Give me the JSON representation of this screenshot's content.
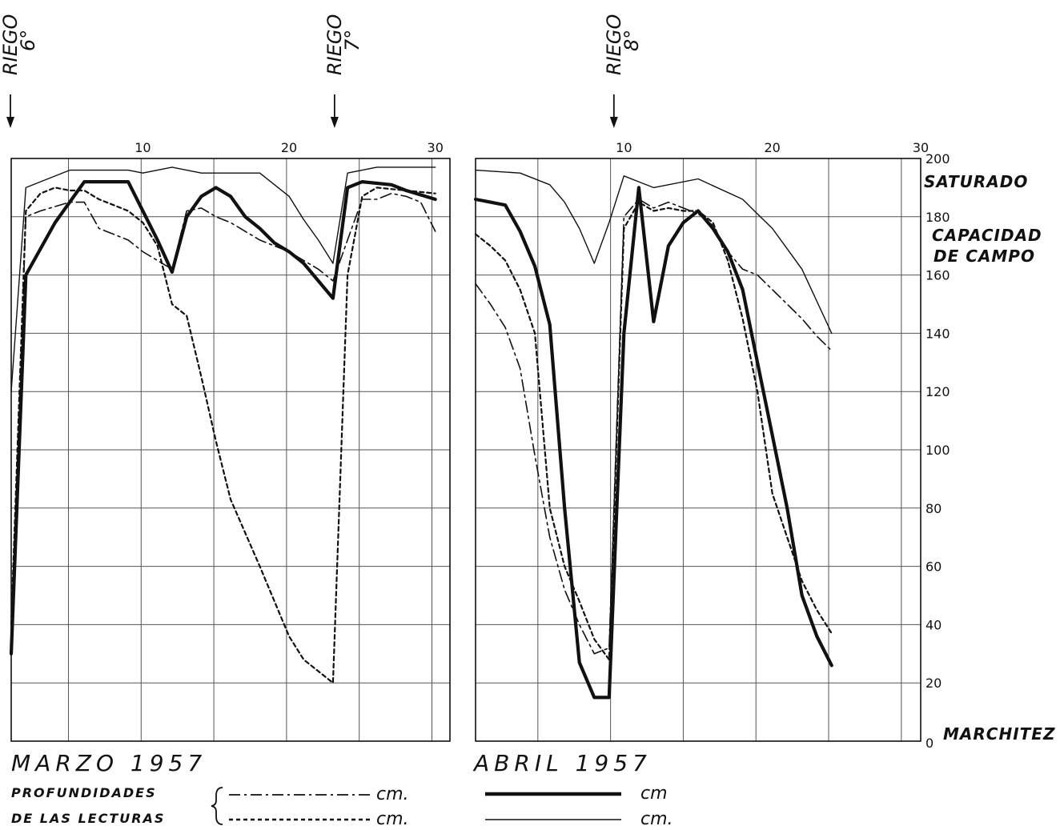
{
  "chart_data": {
    "type": "line",
    "y_axis": {
      "range": [
        0,
        200
      ],
      "ticks": [
        0,
        20,
        40,
        60,
        80,
        100,
        120,
        140,
        160,
        180,
        200
      ],
      "tick_labels": [
        "0",
        "20",
        "40",
        "60",
        "80",
        "100",
        "120",
        "140",
        "160",
        "180",
        "200"
      ]
    },
    "y_reference_labels": [
      {
        "y": 0,
        "text": "MARCHITEZ"
      },
      {
        "y": 180,
        "text": "CAPACIDAD"
      },
      {
        "y": 180,
        "text": "DE CAMPO"
      },
      {
        "y": 200,
        "text": "SATURADO"
      }
    ],
    "irrigations": [
      {
        "label": "RIEGO",
        "number": "6°",
        "panel": "marzo",
        "day": 1
      },
      {
        "label": "RIEGO",
        "number": "7°",
        "panel": "marzo",
        "day": 23
      },
      {
        "label": "RIEGO",
        "number": "8°",
        "panel": "abril",
        "day": 9
      }
    ],
    "panels": [
      {
        "month": "MARZO 1957",
        "x_ticks": [
          10,
          20,
          30
        ],
        "x_tick_labels": [
          "10",
          "20",
          "30"
        ],
        "xlim": [
          1,
          31
        ],
        "ylim": [
          0,
          200
        ],
        "series": [
          {
            "style": "dash-dot",
            "points": [
              [
                1,
                35
              ],
              [
                2,
                180
              ],
              [
                3,
                182
              ],
              [
                5,
                185
              ],
              [
                6,
                185
              ],
              [
                7,
                176
              ],
              [
                9,
                172
              ],
              [
                10,
                168
              ],
              [
                12,
                162
              ],
              [
                13,
                182
              ],
              [
                14,
                183
              ],
              [
                15,
                180
              ],
              [
                16,
                178
              ],
              [
                18,
                172
              ],
              [
                19,
                170
              ],
              [
                20,
                168
              ],
              [
                21,
                165
              ],
              [
                22,
                162
              ],
              [
                23,
                158
              ],
              [
                24,
                172
              ],
              [
                25,
                186
              ],
              [
                26,
                186
              ],
              [
                27,
                188
              ],
              [
                28,
                187
              ],
              [
                29,
                185
              ],
              [
                30,
                175
              ]
            ]
          },
          {
            "style": "dashed",
            "points": [
              [
                1,
                40
              ],
              [
                2,
                182
              ],
              [
                3,
                188
              ],
              [
                4,
                190
              ],
              [
                5,
                189
              ],
              [
                6,
                189
              ],
              [
                7,
                186
              ],
              [
                8,
                184
              ],
              [
                9,
                182
              ],
              [
                10,
                178
              ],
              [
                11,
                170
              ],
              [
                12,
                150
              ],
              [
                13,
                146
              ],
              [
                14,
                125
              ],
              [
                15,
                103
              ],
              [
                16,
                83
              ],
              [
                18,
                60
              ],
              [
                19,
                48
              ],
              [
                20,
                36
              ],
              [
                21,
                28
              ],
              [
                22,
                24
              ],
              [
                23,
                20
              ],
              [
                24,
                160
              ],
              [
                25,
                187
              ],
              [
                26,
                190
              ],
              [
                30,
                188
              ]
            ]
          },
          {
            "style": "thick",
            "points": [
              [
                1,
                30
              ],
              [
                2,
                160
              ],
              [
                4,
                178
              ],
              [
                6,
                192
              ],
              [
                9,
                192
              ],
              [
                10,
                182
              ],
              [
                11,
                172
              ],
              [
                12,
                161
              ],
              [
                13,
                180
              ],
              [
                14,
                187
              ],
              [
                15,
                190
              ],
              [
                16,
                187
              ],
              [
                17,
                180
              ],
              [
                18,
                176
              ],
              [
                19,
                171
              ],
              [
                20,
                168
              ],
              [
                21,
                164
              ],
              [
                22,
                158
              ],
              [
                23,
                152
              ],
              [
                24,
                190
              ],
              [
                25,
                192
              ],
              [
                27,
                191
              ],
              [
                28,
                189
              ],
              [
                30,
                186
              ]
            ]
          },
          {
            "style": "thin",
            "points": [
              [
                1,
                120
              ],
              [
                2,
                190
              ],
              [
                3,
                192
              ],
              [
                5,
                196
              ],
              [
                9,
                196
              ],
              [
                10,
                195
              ],
              [
                12,
                197
              ],
              [
                14,
                195
              ],
              [
                18,
                195
              ],
              [
                20,
                187
              ],
              [
                21,
                179
              ],
              [
                22,
                172
              ],
              [
                23,
                164
              ],
              [
                24,
                195
              ],
              [
                25,
                196
              ],
              [
                26,
                197
              ],
              [
                28,
                197
              ],
              [
                30,
                197
              ]
            ]
          }
        ]
      },
      {
        "month": "ABRIL 1957",
        "x_ticks": [
          10,
          20,
          30
        ],
        "x_tick_labels": [
          "10",
          "20",
          "30"
        ],
        "xlim": [
          0,
          30
        ],
        "ylim": [
          0,
          200
        ],
        "series": [
          {
            "style": "dash-dot",
            "points": [
              [
                0,
                157
              ],
              [
                1,
                150
              ],
              [
                2,
                142
              ],
              [
                3,
                128
              ],
              [
                4,
                98
              ],
              [
                5,
                70
              ],
              [
                6,
                52
              ],
              [
                7,
                40
              ],
              [
                8,
                30
              ],
              [
                9,
                32
              ],
              [
                10,
                180
              ],
              [
                11,
                186
              ],
              [
                12,
                183
              ],
              [
                13,
                185
              ],
              [
                14,
                183
              ],
              [
                15,
                181
              ],
              [
                16,
                177
              ],
              [
                17,
                168
              ],
              [
                18,
                162
              ],
              [
                19,
                160
              ],
              [
                20,
                155
              ],
              [
                21,
                150
              ],
              [
                22,
                145
              ],
              [
                23,
                139
              ],
              [
                24,
                134
              ]
            ]
          },
          {
            "style": "dashed",
            "points": [
              [
                0,
                174
              ],
              [
                1,
                170
              ],
              [
                2,
                165
              ],
              [
                3,
                155
              ],
              [
                4,
                140
              ],
              [
                5,
                80
              ],
              [
                6,
                60
              ],
              [
                7,
                48
              ],
              [
                8,
                35
              ],
              [
                9,
                28
              ],
              [
                10,
                176
              ],
              [
                11,
                185
              ],
              [
                12,
                182
              ],
              [
                13,
                183
              ],
              [
                14,
                182
              ],
              [
                15,
                182
              ],
              [
                16,
                178
              ],
              [
                17,
                165
              ],
              [
                18,
                145
              ],
              [
                19,
                120
              ],
              [
                20,
                85
              ],
              [
                21,
                70
              ],
              [
                22,
                55
              ],
              [
                23,
                45
              ],
              [
                24,
                37
              ]
            ]
          },
          {
            "style": "thick",
            "points": [
              [
                0,
                186
              ],
              [
                1,
                185
              ],
              [
                2,
                184
              ],
              [
                3,
                175
              ],
              [
                4,
                163
              ],
              [
                5,
                143
              ],
              [
                6,
                80
              ],
              [
                7,
                27
              ],
              [
                8,
                15
              ],
              [
                9,
                15
              ],
              [
                10,
                140
              ],
              [
                11,
                190
              ],
              [
                12,
                144
              ],
              [
                13,
                170
              ],
              [
                14,
                178
              ],
              [
                15,
                182
              ],
              [
                16,
                176
              ],
              [
                17,
                168
              ],
              [
                18,
                155
              ],
              [
                19,
                130
              ],
              [
                20,
                105
              ],
              [
                21,
                80
              ],
              [
                22,
                50
              ],
              [
                23,
                36
              ],
              [
                24,
                26
              ]
            ]
          },
          {
            "style": "thin",
            "points": [
              [
                0,
                196
              ],
              [
                3,
                195
              ],
              [
                5,
                191
              ],
              [
                6,
                185
              ],
              [
                7,
                176
              ],
              [
                8,
                164
              ],
              [
                9,
                178
              ],
              [
                10,
                194
              ],
              [
                11,
                192
              ],
              [
                12,
                190
              ],
              [
                15,
                193
              ],
              [
                18,
                186
              ],
              [
                19,
                181
              ],
              [
                20,
                176
              ],
              [
                21,
                169
              ],
              [
                22,
                162
              ],
              [
                23,
                151
              ],
              [
                24,
                140
              ]
            ]
          }
        ]
      }
    ],
    "legend": {
      "title_line1": "PROFUNDIDADES",
      "title_line2": "DE LAS LECTURAS",
      "entries": [
        {
          "style": "dash-dot",
          "unit": "cm."
        },
        {
          "style": "dashed",
          "unit": "cm."
        },
        {
          "style": "thick",
          "unit": "cm"
        },
        {
          "style": "thin",
          "unit": "cm."
        }
      ]
    }
  }
}
